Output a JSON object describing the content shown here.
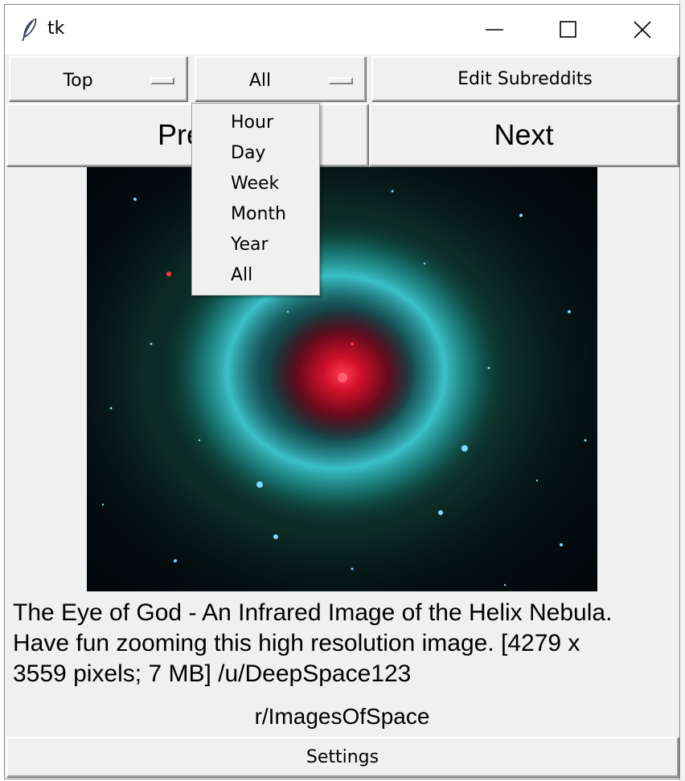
{
  "window": {
    "title": "tk",
    "controls": [
      "minimize-icon",
      "maximize-icon",
      "close-icon"
    ]
  },
  "toolbar": {
    "sort_value": "Top",
    "time_value": "All",
    "edit_label": "Edit Subreddits"
  },
  "nav": {
    "prev_label": "Prev",
    "next_label": "Next"
  },
  "dropdown": {
    "items": [
      "Hour",
      "Day",
      "Week",
      "Month",
      "Year",
      "All"
    ]
  },
  "post": {
    "caption_line1": "The Eye of God - An Infrared Image of the Helix Nebula.",
    "caption_line2": "Have fun zooming this high resolution image. [4279 x",
    "caption_line3": "3559 pixels; 7 MB] /u/DeepSpace123",
    "subreddit": "r/ImagesOfSpace"
  },
  "footer": {
    "settings_label": "Settings"
  },
  "colors": {
    "window_bg": "#f0f0f0",
    "nebula_core": "#e0102a",
    "nebula_ring": "#3cc8d0"
  }
}
